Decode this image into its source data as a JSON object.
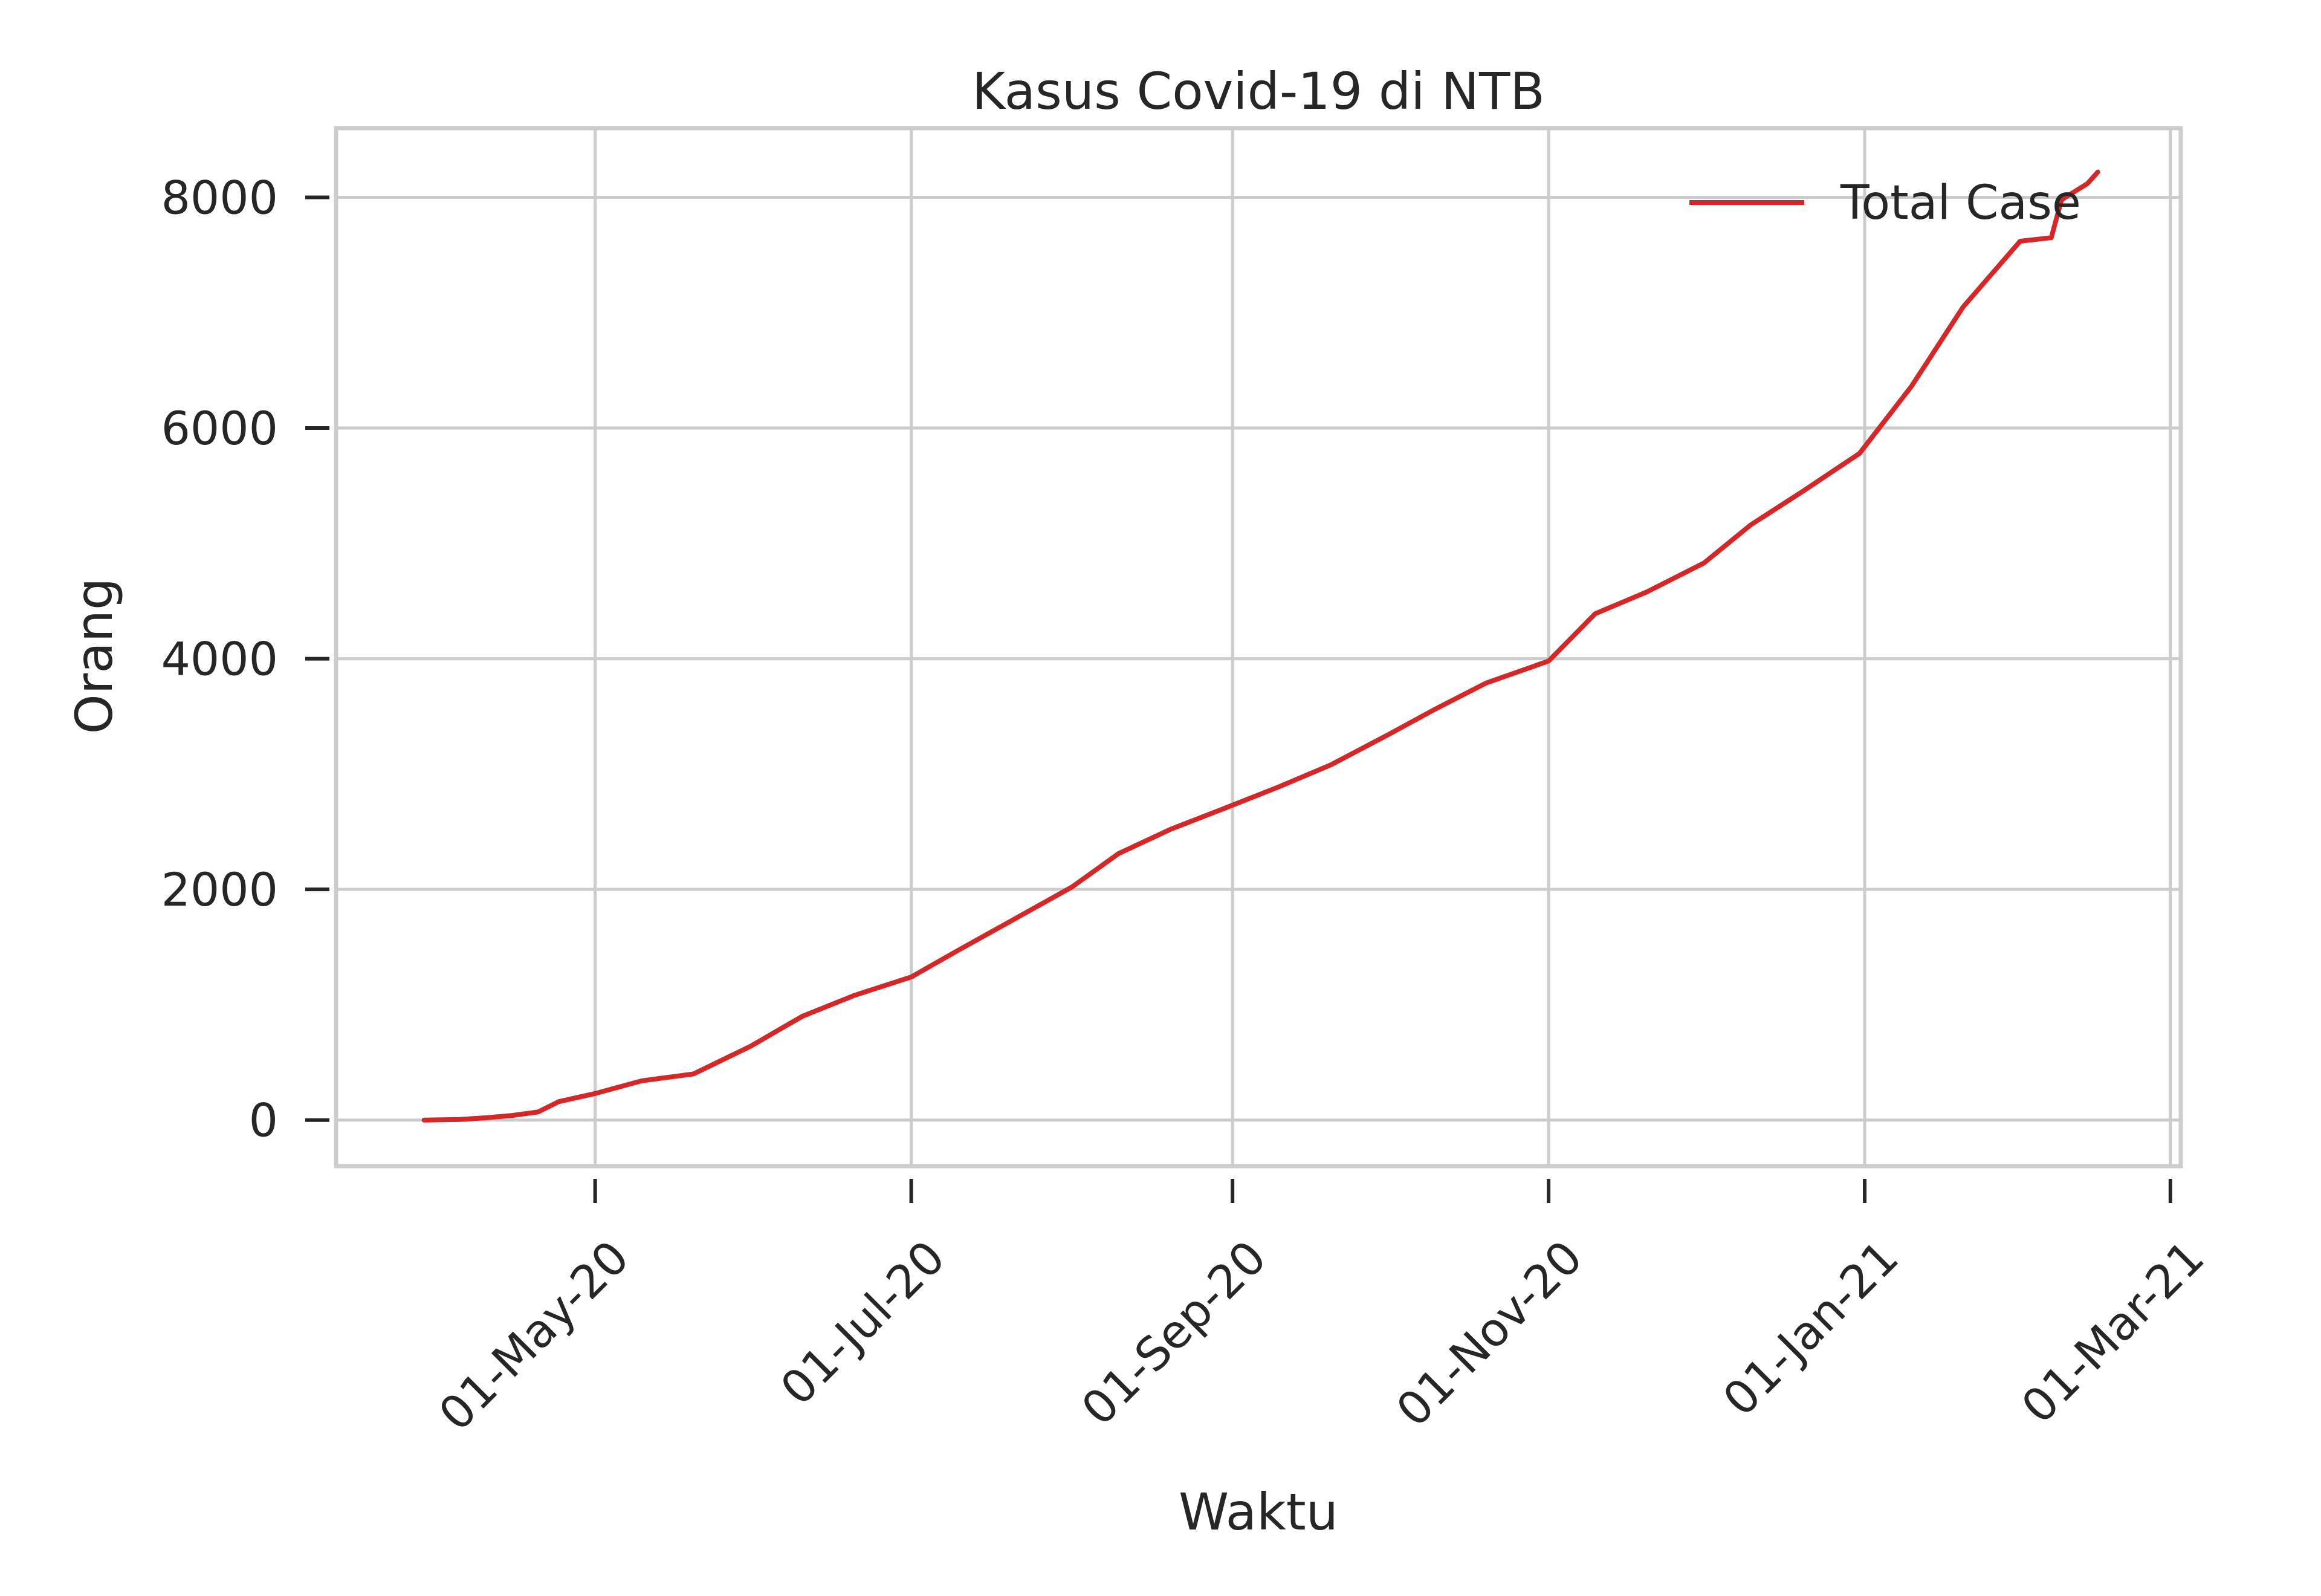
{
  "chart_data": {
    "type": "line",
    "title": "Kasus Covid-19 di NTB",
    "xlabel": "Waktu",
    "ylabel": "Orang",
    "x_tick_labels": [
      "01-May-20",
      "01-Jul-20",
      "01-Sep-20",
      "01-Nov-20",
      "01-Jan-21",
      "01-Mar-21"
    ],
    "y_tick_labels": [
      "0",
      "2000",
      "4000",
      "6000",
      "8000"
    ],
    "y_ticks": [
      0,
      2000,
      4000,
      6000,
      8000
    ],
    "xlim": [
      "2020-03-12",
      "2021-03-03"
    ],
    "ylim": [
      -400,
      8600
    ],
    "grid": true,
    "legend_position": "upper right",
    "series": [
      {
        "name": "Total Case",
        "color": "#d62728",
        "x": [
          "2020-03-29",
          "2020-04-05",
          "2020-04-10",
          "2020-04-15",
          "2020-04-20",
          "2020-04-24",
          "2020-05-01",
          "2020-05-10",
          "2020-05-20",
          "2020-05-31",
          "2020-06-10",
          "2020-06-20",
          "2020-07-01",
          "2020-07-10",
          "2020-07-20",
          "2020-08-01",
          "2020-08-10",
          "2020-08-20",
          "2020-09-01",
          "2020-09-10",
          "2020-09-20",
          "2020-10-01",
          "2020-10-10",
          "2020-10-20",
          "2020-11-01",
          "2020-11-10",
          "2020-11-20",
          "2020-12-01",
          "2020-12-10",
          "2020-12-20",
          "2020-12-31",
          "2021-01-10",
          "2021-01-20",
          "2021-01-31",
          "2021-02-06",
          "2021-02-08",
          "2021-02-13",
          "2021-02-15"
        ],
        "values": [
          0,
          5,
          20,
          40,
          70,
          160,
          230,
          340,
          400,
          640,
          900,
          1080,
          1240,
          1470,
          1720,
          2020,
          2310,
          2520,
          2730,
          2890,
          3080,
          3340,
          3560,
          3790,
          3980,
          4390,
          4580,
          4830,
          5160,
          5450,
          5780,
          6360,
          7050,
          7620,
          7650,
          7980,
          8120,
          8220
        ]
      }
    ]
  }
}
